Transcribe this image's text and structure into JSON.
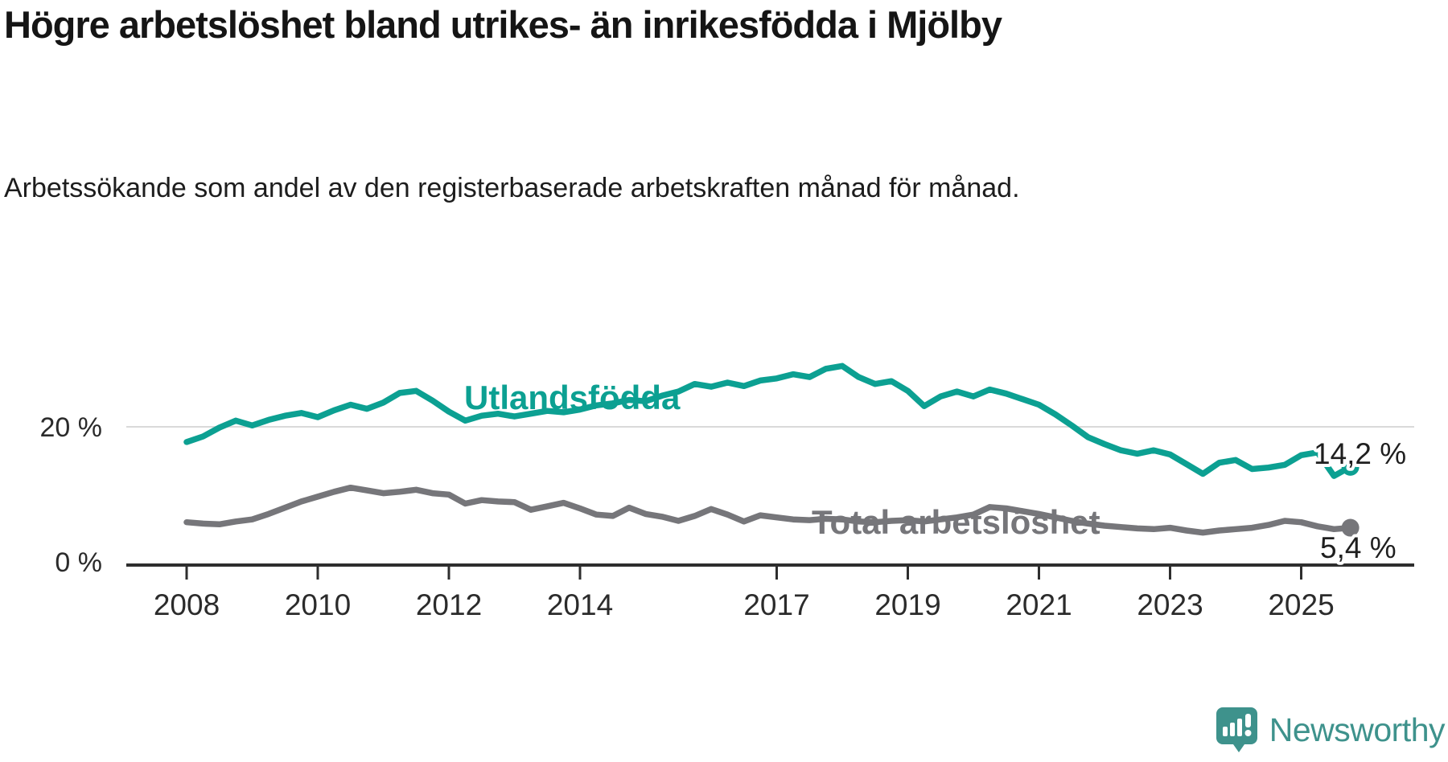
{
  "header": {
    "title": "Högre arbetslöshet bland utrikes- än inrikesfödda i Mjölby",
    "subtitle": "Arbetssökande som andel av den registerbaserade arbetskraften månad för månad."
  },
  "footer": {
    "brand": "Newsworthy"
  },
  "colors": {
    "foreign_born_line": "#0ca092",
    "total_line": "#76767a",
    "annotation_text": "#1f1f1f",
    "axis": "#2e2e2e",
    "gridline": "#d9d9d9",
    "logo_teal": "#3e928c"
  },
  "chart_data": {
    "type": "line",
    "title": "Högre arbetslöshet bland utrikes- än inrikesfödda i Mjölby",
    "subtitle": "Arbetssökande som andel av den registerbaserade arbetskraften månad för månad.",
    "unit": "%",
    "grid": "single horizontal gridline at 20 %",
    "legend_position": "inline labels on lines",
    "ylim": [
      0,
      31
    ],
    "xlim": [
      2007.1,
      2026.7
    ],
    "y_ticks": [
      {
        "value": 0,
        "label": "0 %"
      },
      {
        "value": 20,
        "label": "20 %"
      }
    ],
    "x_ticks": [
      {
        "year": 2008,
        "label": "2008"
      },
      {
        "year": 2010,
        "label": "2010"
      },
      {
        "year": 2012,
        "label": "2012"
      },
      {
        "year": 2014,
        "label": "2014"
      },
      {
        "year": 2017,
        "label": "2017"
      },
      {
        "year": 2019,
        "label": "2019"
      },
      {
        "year": 2021,
        "label": "2021"
      },
      {
        "year": 2023,
        "label": "2023"
      },
      {
        "year": 2025,
        "label": "2025"
      }
    ],
    "x": [
      2008.0,
      2008.25,
      2008.5,
      2008.75,
      2009.0,
      2009.25,
      2009.5,
      2009.75,
      2010.0,
      2010.25,
      2010.5,
      2010.75,
      2011.0,
      2011.25,
      2011.5,
      2011.75,
      2012.0,
      2012.25,
      2012.5,
      2012.75,
      2013.0,
      2013.25,
      2013.5,
      2013.75,
      2014.0,
      2014.25,
      2014.5,
      2014.75,
      2015.0,
      2015.25,
      2015.5,
      2015.75,
      2016.0,
      2016.25,
      2016.5,
      2016.75,
      2017.0,
      2017.25,
      2017.5,
      2017.75,
      2018.0,
      2018.25,
      2018.5,
      2018.75,
      2019.0,
      2019.25,
      2019.5,
      2019.75,
      2020.0,
      2020.25,
      2020.5,
      2020.75,
      2021.0,
      2021.25,
      2021.5,
      2021.75,
      2022.0,
      2022.25,
      2022.5,
      2022.75,
      2023.0,
      2023.25,
      2023.5,
      2023.75,
      2024.0,
      2024.25,
      2024.5,
      2024.75,
      2025.0,
      2025.25,
      2025.5,
      2025.75
    ],
    "series": [
      {
        "name": "Utlandsfödda",
        "color": "#0ca092",
        "end_label": "14,2 %",
        "end_value": 14.2,
        "values": [
          17.8,
          18.6,
          19.9,
          20.9,
          20.2,
          21.0,
          21.6,
          22.0,
          21.4,
          22.4,
          23.2,
          22.6,
          23.5,
          24.9,
          25.2,
          23.8,
          22.2,
          20.9,
          21.6,
          21.9,
          21.5,
          21.9,
          22.3,
          22.1,
          22.5,
          23.1,
          23.4,
          23.9,
          23.7,
          24.5,
          25.1,
          26.2,
          25.8,
          26.4,
          25.9,
          26.7,
          27.0,
          27.6,
          27.2,
          28.4,
          28.8,
          27.2,
          26.2,
          26.6,
          25.2,
          23.0,
          24.4,
          25.1,
          24.4,
          25.4,
          24.8,
          24.0,
          23.2,
          21.8,
          20.2,
          18.5,
          17.5,
          16.6,
          16.1,
          16.6,
          16.0,
          14.6,
          13.2,
          14.8,
          15.2,
          13.9,
          14.1,
          14.5,
          15.9,
          16.3,
          12.9,
          14.2
        ]
      },
      {
        "name": "Total arbetslöshet",
        "color": "#76767a",
        "end_label": "5,4 %",
        "end_value": 5.4,
        "values": [
          6.2,
          6.0,
          5.9,
          6.3,
          6.6,
          7.4,
          8.3,
          9.2,
          9.9,
          10.6,
          11.2,
          10.8,
          10.4,
          10.6,
          10.9,
          10.4,
          10.2,
          8.9,
          9.4,
          9.2,
          9.1,
          8.0,
          8.5,
          9.0,
          8.2,
          7.3,
          7.1,
          8.3,
          7.4,
          7.0,
          6.4,
          7.1,
          8.1,
          7.3,
          6.3,
          7.2,
          6.9,
          6.6,
          6.5,
          6.7,
          6.6,
          6.3,
          6.2,
          6.4,
          6.5,
          6.3,
          6.6,
          6.9,
          7.3,
          8.4,
          8.2,
          7.8,
          7.4,
          6.9,
          6.4,
          6.0,
          5.7,
          5.5,
          5.3,
          5.2,
          5.4,
          5.0,
          4.7,
          5.0,
          5.2,
          5.4,
          5.8,
          6.4,
          6.2,
          5.6,
          5.2,
          5.4
        ]
      }
    ]
  }
}
